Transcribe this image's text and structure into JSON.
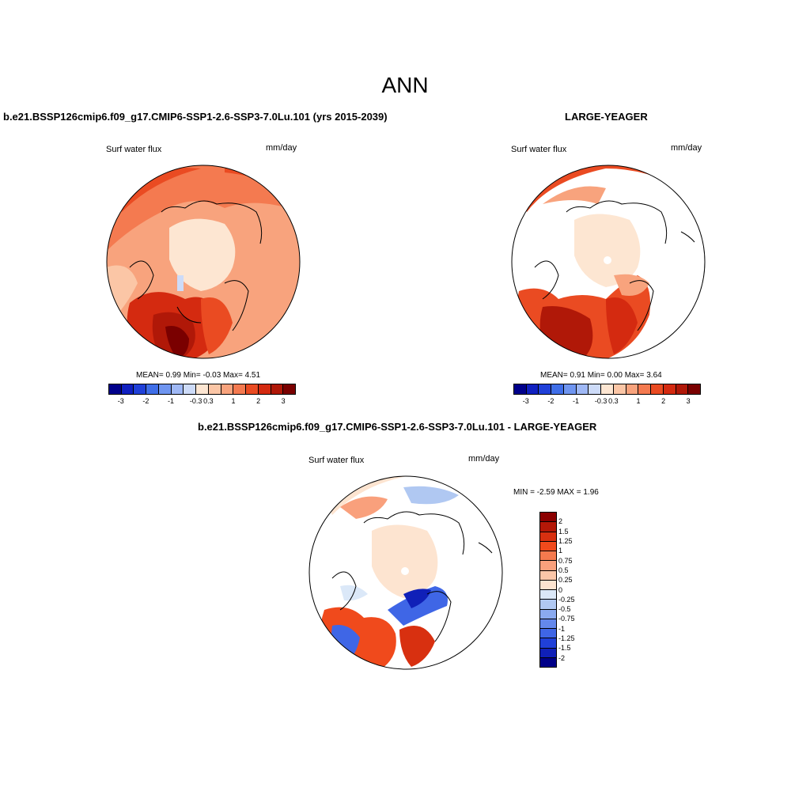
{
  "title": "ANN",
  "panels": {
    "left": {
      "case": "b.e21.BSSP126cmip6.f09_g17.CMIP6-SSP1-2.6-SSP3-7.0Lu.101 (yrs 2015-2039)",
      "variable": "Surf water flux",
      "units": "mm/day",
      "stats": "MEAN=   0.99  Min=  -0.03  Max=   4.51"
    },
    "right": {
      "case": "LARGE-YEAGER",
      "variable": "Surf water flux",
      "units": "mm/day",
      "stats": "MEAN=   0.91  Min=   0.00  Max=   3.64"
    },
    "diff": {
      "case": "b.e21.BSSP126cmip6.f09_g17.CMIP6-SSP1-2.6-SSP3-7.0Lu.101 - LARGE-YEAGER",
      "variable": "Surf water flux",
      "units": "mm/day",
      "minmax": "MIN =  -2.59 MAX =   1.96"
    }
  },
  "colorbar_horizontal": {
    "colors": [
      "#00008b",
      "#1020c0",
      "#2040d8",
      "#3f6ee8",
      "#6f95f0",
      "#9fb8f5",
      "#cddbf8",
      "#fde6d2",
      "#fbc6a6",
      "#f8a37d",
      "#f47a50",
      "#ea4b22",
      "#d42a10",
      "#b01808",
      "#7a0000"
    ],
    "ticks": [
      "-3",
      "-2",
      "-1",
      "-0.3",
      "0.3",
      "1",
      "2",
      "3"
    ]
  },
  "colorbar_vertical": {
    "colors": [
      "#8b0000",
      "#b41808",
      "#d83010",
      "#f04a1c",
      "#f57a4e",
      "#f9a07c",
      "#fbc6a8",
      "#fde4d0",
      "#dbe8f8",
      "#b0c8f2",
      "#8aaaf0",
      "#6488ec",
      "#3f66e6",
      "#2040d8",
      "#1020b8",
      "#000088"
    ],
    "labels": [
      "2",
      "1.5",
      "1.25",
      "1",
      "0.75",
      "0.5",
      "0.25",
      "0",
      "-0.25",
      "-0.5",
      "-0.75",
      "-1",
      "-1.25",
      "-1.5",
      "-2"
    ]
  }
}
